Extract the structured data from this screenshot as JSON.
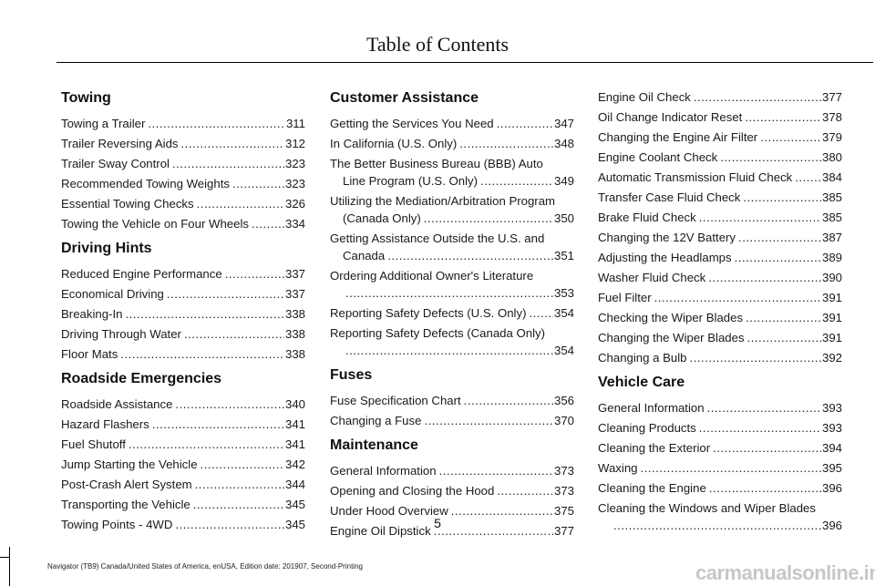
{
  "header": {
    "title": "Table of Contents"
  },
  "columns": [
    {
      "sections": [
        {
          "title": "Towing",
          "entries": [
            {
              "title": "Towing a Trailer",
              "page": "311"
            },
            {
              "title": "Trailer Reversing Aids",
              "page": "312"
            },
            {
              "title": "Trailer Sway Control",
              "page": "323"
            },
            {
              "title": "Recommended Towing Weights",
              "page": "323"
            },
            {
              "title": "Essential Towing Checks",
              "page": "326"
            },
            {
              "title": "Towing the Vehicle on Four Wheels",
              "page": "334"
            }
          ]
        },
        {
          "title": "Driving Hints",
          "entries": [
            {
              "title": "Reduced Engine Performance",
              "page": "337"
            },
            {
              "title": "Economical Driving",
              "page": "337"
            },
            {
              "title": "Breaking-In",
              "page": "338"
            },
            {
              "title": "Driving Through Water",
              "page": "338"
            },
            {
              "title": "Floor Mats",
              "page": "338"
            }
          ]
        },
        {
          "title": "Roadside Emergencies",
          "entries": [
            {
              "title": "Roadside Assistance",
              "page": "340"
            },
            {
              "title": "Hazard Flashers",
              "page": "341"
            },
            {
              "title": "Fuel Shutoff",
              "page": "341"
            },
            {
              "title": "Jump Starting the Vehicle",
              "page": "342"
            },
            {
              "title": "Post-Crash Alert System",
              "page": "344"
            },
            {
              "title": "Transporting the Vehicle",
              "page": "345"
            },
            {
              "title": "Towing Points - 4WD",
              "page": "345"
            }
          ]
        }
      ]
    },
    {
      "sections": [
        {
          "title": "Customer Assistance",
          "entries": [
            {
              "title": "Getting the Services You Need",
              "page": "347"
            },
            {
              "title": "In California (U.S. Only)",
              "page": "348"
            },
            {
              "title": "The Better Business Bureau (BBB) Auto",
              "cont": "Line Program (U.S. Only)",
              "page": "349"
            },
            {
              "title": "Utilizing the Mediation/Arbitration Program",
              "cont": "(Canada Only)",
              "page": "350"
            },
            {
              "title": "Getting Assistance Outside the U.S. and",
              "cont": "Canada",
              "page": "351"
            },
            {
              "title": "Ordering Additional Owner's Literature",
              "cont": "",
              "page": "353"
            },
            {
              "title": "Reporting Safety Defects (U.S. Only)",
              "page": "354"
            },
            {
              "title": "Reporting Safety Defects (Canada Only)",
              "cont": "",
              "page": "354"
            }
          ]
        },
        {
          "title": "Fuses",
          "entries": [
            {
              "title": "Fuse Specification Chart",
              "page": "356"
            },
            {
              "title": "Changing a Fuse",
              "page": "370"
            }
          ]
        },
        {
          "title": "Maintenance",
          "entries": [
            {
              "title": "General Information",
              "page": "373"
            },
            {
              "title": "Opening and Closing the Hood",
              "page": "373"
            },
            {
              "title": "Under Hood Overview",
              "page": "375"
            },
            {
              "title": "Engine Oil Dipstick",
              "page": "377"
            }
          ]
        }
      ]
    },
    {
      "sections": [
        {
          "title": "",
          "entries": [
            {
              "title": "Engine Oil Check",
              "page": "377"
            },
            {
              "title": "Oil Change Indicator Reset",
              "page": "378"
            },
            {
              "title": "Changing the Engine Air Filter",
              "page": "379"
            },
            {
              "title": "Engine Coolant Check",
              "page": "380"
            },
            {
              "title": "Automatic Transmission Fluid Check",
              "page": "384"
            },
            {
              "title": "Transfer Case Fluid Check",
              "page": "385"
            },
            {
              "title": "Brake Fluid Check",
              "page": "385"
            },
            {
              "title": "Changing the 12V Battery",
              "page": "387"
            },
            {
              "title": "Adjusting the Headlamps",
              "page": "389"
            },
            {
              "title": "Washer Fluid Check",
              "page": "390"
            },
            {
              "title": "Fuel Filter",
              "page": "391"
            },
            {
              "title": "Checking the Wiper Blades",
              "page": "391"
            },
            {
              "title": "Changing the Wiper Blades",
              "page": "391"
            },
            {
              "title": "Changing a Bulb",
              "page": "392"
            }
          ]
        },
        {
          "title": "Vehicle Care",
          "entries": [
            {
              "title": "General Information",
              "page": "393"
            },
            {
              "title": "Cleaning Products",
              "page": "393"
            },
            {
              "title": "Cleaning the Exterior",
              "page": "394"
            },
            {
              "title": "Waxing",
              "page": "395"
            },
            {
              "title": "Cleaning the Engine",
              "page": "396"
            },
            {
              "title": "Cleaning the Windows and Wiper Blades",
              "cont": "",
              "page": "396"
            }
          ]
        }
      ]
    }
  ],
  "page_number": "5",
  "footer": {
    "text": "Navigator (TB9) Canada/United States of America, enUSA, Edition date: 201907, Second-Printing"
  },
  "watermark": {
    "text": "carmanualsonline.info"
  }
}
